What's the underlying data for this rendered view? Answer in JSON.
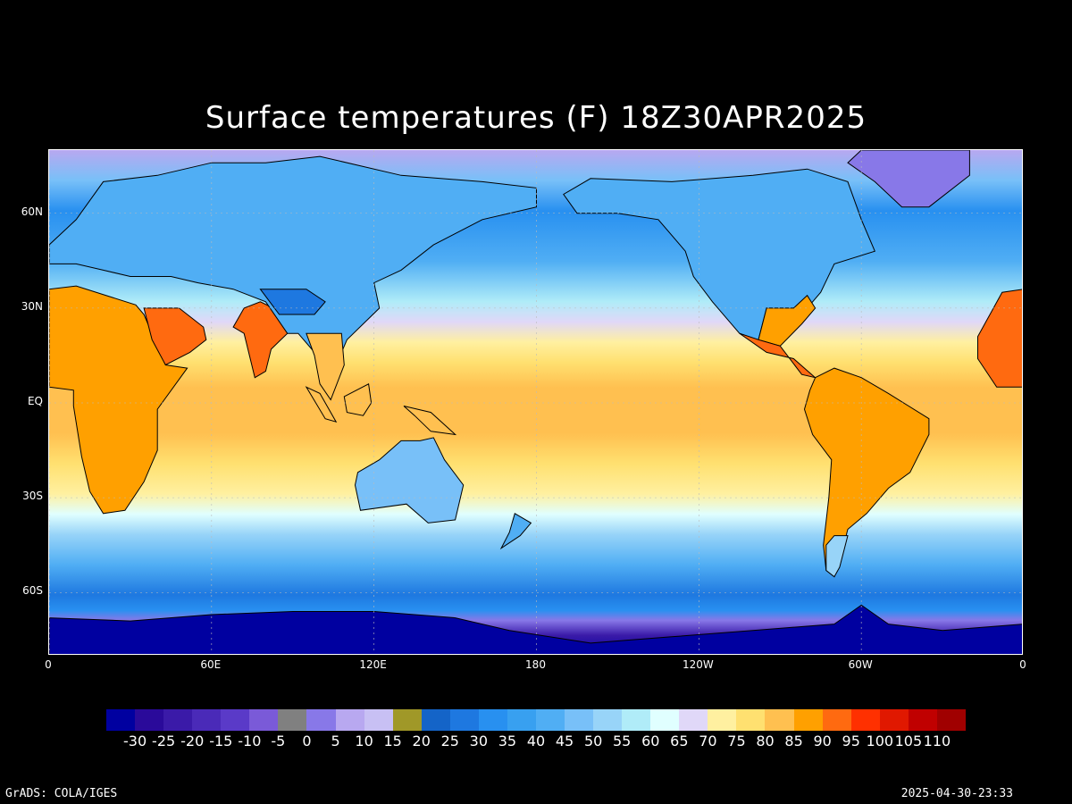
{
  "title": "Surface temperatures (F) 18Z30APR2025",
  "map": {
    "projection": "latlon",
    "lon_range": [
      0,
      360
    ],
    "lat_range": [
      -80,
      80
    ],
    "lat_ticks": [
      {
        "value": 60,
        "label": "60N"
      },
      {
        "value": 30,
        "label": "30N"
      },
      {
        "value": 0,
        "label": "EQ"
      },
      {
        "value": -30,
        "label": "30S"
      },
      {
        "value": -60,
        "label": "60S"
      }
    ],
    "lon_ticks": [
      {
        "value": 0,
        "label": "0"
      },
      {
        "value": 60,
        "label": "60E"
      },
      {
        "value": 120,
        "label": "120E"
      },
      {
        "value": 180,
        "label": "180"
      },
      {
        "value": 240,
        "label": "120W"
      },
      {
        "value": 300,
        "label": "60W"
      },
      {
        "value": 360,
        "label": "0"
      }
    ]
  },
  "colorbar": {
    "colors": [
      "#0000a0",
      "#2a0a9a",
      "#3a1aa8",
      "#4a2ab8",
      "#5a3ac8",
      "#7a5ad8",
      "#808080",
      "#8878e8",
      "#b8a8f0",
      "#c8c0f4",
      "#a09828",
      "#1464c8",
      "#1e78e0",
      "#2890f0",
      "#38a0f0",
      "#50aef4",
      "#78c0f8",
      "#98d4f8",
      "#b0ecf8",
      "#e0ffff",
      "#e0d8f8",
      "#fff0a0",
      "#ffe070",
      "#ffc050",
      "#ffa000",
      "#ff6a10",
      "#ff3000",
      "#e01800",
      "#c00000",
      "#a00000"
    ],
    "labels": [
      "-30",
      "-25",
      "-20",
      "-15",
      "-10",
      "-5",
      "0",
      "5",
      "10",
      "15",
      "20",
      "25",
      "30",
      "35",
      "40",
      "45",
      "50",
      "55",
      "60",
      "65",
      "70",
      "75",
      "80",
      "85",
      "90",
      "95",
      "100",
      "105",
      "110"
    ]
  },
  "footer": {
    "left": "GrADS: COLA/IGES",
    "right": "2025-04-30-23:33"
  }
}
